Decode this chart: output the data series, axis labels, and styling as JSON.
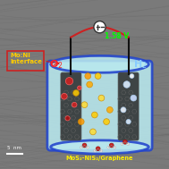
{
  "bg_color": "#7a7a7a",
  "container_fill": "#b8e8ee",
  "container_edge": "#2244cc",
  "voltage_text": "1.58 V",
  "voltage_color": "#00ff00",
  "o2_color": "#ff2222",
  "h2_color": "#88ccff",
  "label_mos2": "MoS₂-NiS₂/Graphene",
  "label_interface": "Mo:Ni\nInterface",
  "scale_bar": "5  nm",
  "wire_color": "#111111",
  "red_box_color": "#cc2222"
}
